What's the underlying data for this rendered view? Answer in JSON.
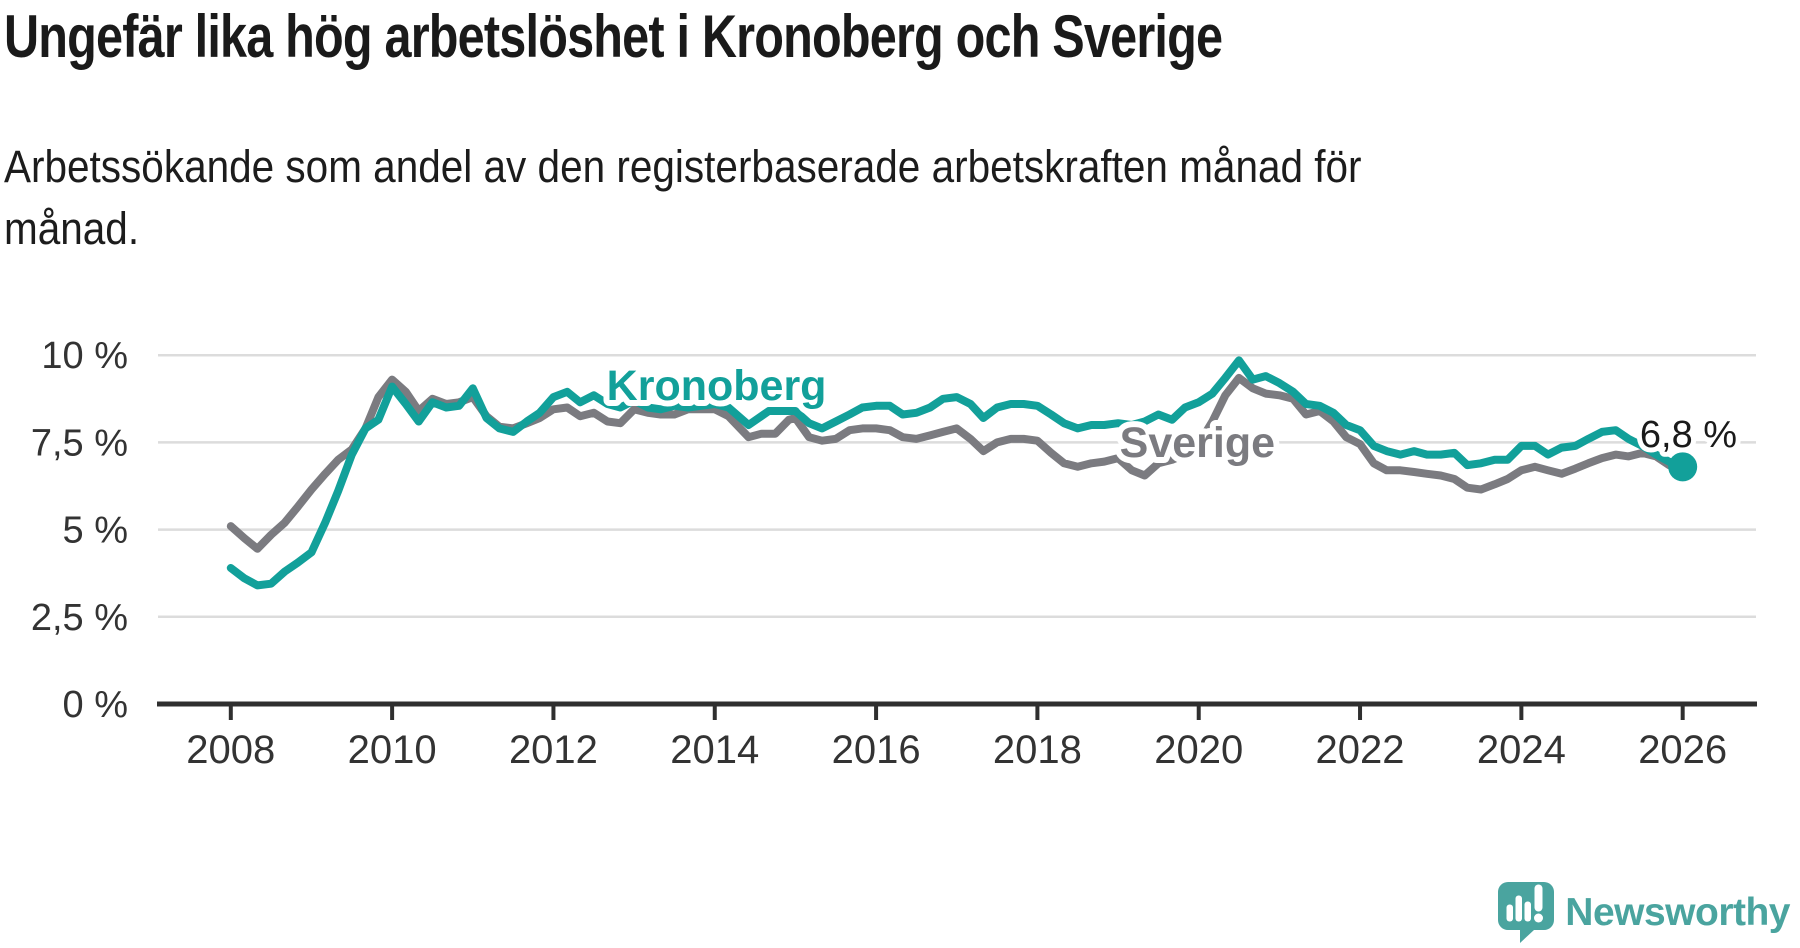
{
  "header": {
    "title": "Ungefär lika hög arbetslöshet i Kronoberg och Sverige",
    "subtitle_line1": "Arbetssökande som andel av den registerbaserade arbetskraften månad för",
    "subtitle_line2": "månad."
  },
  "footer": {
    "logo_text": "Newsworthy",
    "logo_color": "#4aa49f",
    "logo_icon": "speech-bubble-bar-chart-icon"
  },
  "chart_data": {
    "type": "line",
    "title": "Ungefär lika hög arbetslöshet i Kronoberg och Sverige",
    "subtitle": "Arbetssökande som andel av den registerbaserade arbetskraften månad för månad.",
    "unit": "%",
    "grid": true,
    "legend_position": "inline-labels",
    "x_axis": {
      "range": [
        2007.9,
        2026.9
      ],
      "ticks": [
        {
          "year": 2008,
          "label": "2008"
        },
        {
          "year": 2010,
          "label": "2010"
        },
        {
          "year": 2012,
          "label": "2012"
        },
        {
          "year": 2014,
          "label": "2014"
        },
        {
          "year": 2016,
          "label": "2016"
        },
        {
          "year": 2018,
          "label": "2018"
        },
        {
          "year": 2020,
          "label": "2020"
        },
        {
          "year": 2022,
          "label": "2022"
        },
        {
          "year": 2024,
          "label": "2024"
        },
        {
          "year": 2026,
          "label": "2026"
        }
      ]
    },
    "y_axis": {
      "range": [
        0,
        10.6
      ],
      "ticks": [
        {
          "value": 0,
          "label": "0 %"
        },
        {
          "value": 2.5,
          "label": "2,5 %"
        },
        {
          "value": 5,
          "label": "5 %"
        },
        {
          "value": 7.5,
          "label": "7,5 %"
        },
        {
          "value": 10,
          "label": "10 %"
        }
      ]
    },
    "series": [
      {
        "name": "Sverige",
        "color": "#7b7b80",
        "inline_label": {
          "text": "Sverige",
          "year": 2019.02,
          "value": 7.08
        },
        "points": [
          [
            2008.0,
            5.1
          ],
          [
            2008.17,
            4.75
          ],
          [
            2008.33,
            4.45
          ],
          [
            2008.5,
            4.85
          ],
          [
            2008.67,
            5.2
          ],
          [
            2008.83,
            5.65
          ],
          [
            2009.0,
            6.15
          ],
          [
            2009.17,
            6.6
          ],
          [
            2009.33,
            7.0
          ],
          [
            2009.5,
            7.3
          ],
          [
            2009.67,
            7.9
          ],
          [
            2009.83,
            8.8
          ],
          [
            2010.0,
            9.3
          ],
          [
            2010.17,
            8.95
          ],
          [
            2010.33,
            8.4
          ],
          [
            2010.5,
            8.75
          ],
          [
            2010.67,
            8.6
          ],
          [
            2010.83,
            8.65
          ],
          [
            2011.0,
            8.8
          ],
          [
            2011.17,
            8.25
          ],
          [
            2011.33,
            7.95
          ],
          [
            2011.5,
            7.9
          ],
          [
            2011.67,
            8.05
          ],
          [
            2011.83,
            8.2
          ],
          [
            2012.0,
            8.45
          ],
          [
            2012.17,
            8.5
          ],
          [
            2012.33,
            8.25
          ],
          [
            2012.5,
            8.35
          ],
          [
            2012.67,
            8.1
          ],
          [
            2012.83,
            8.05
          ],
          [
            2013.0,
            8.45
          ],
          [
            2013.17,
            8.35
          ],
          [
            2013.33,
            8.3
          ],
          [
            2013.5,
            8.3
          ],
          [
            2013.67,
            8.45
          ],
          [
            2013.83,
            8.45
          ],
          [
            2014.0,
            8.45
          ],
          [
            2014.17,
            8.25
          ],
          [
            2014.42,
            7.65
          ],
          [
            2014.58,
            7.75
          ],
          [
            2014.75,
            7.75
          ],
          [
            2014.92,
            8.15
          ],
          [
            2015.0,
            8.2
          ],
          [
            2015.17,
            7.65
          ],
          [
            2015.33,
            7.55
          ],
          [
            2015.5,
            7.6
          ],
          [
            2015.67,
            7.85
          ],
          [
            2015.83,
            7.9
          ],
          [
            2016.0,
            7.9
          ],
          [
            2016.17,
            7.85
          ],
          [
            2016.33,
            7.65
          ],
          [
            2016.5,
            7.6
          ],
          [
            2016.67,
            7.7
          ],
          [
            2016.83,
            7.8
          ],
          [
            2017.0,
            7.9
          ],
          [
            2017.17,
            7.6
          ],
          [
            2017.33,
            7.25
          ],
          [
            2017.5,
            7.5
          ],
          [
            2017.67,
            7.6
          ],
          [
            2017.83,
            7.6
          ],
          [
            2018.0,
            7.55
          ],
          [
            2018.17,
            7.2
          ],
          [
            2018.33,
            6.9
          ],
          [
            2018.5,
            6.8
          ],
          [
            2018.67,
            6.9
          ],
          [
            2018.83,
            6.95
          ],
          [
            2019.0,
            7.05
          ],
          [
            2019.17,
            6.7
          ],
          [
            2019.33,
            6.55
          ],
          [
            2019.5,
            6.9
          ],
          [
            2019.67,
            7.0
          ],
          [
            2019.83,
            7.15
          ],
          [
            2020.0,
            7.45
          ],
          [
            2020.17,
            8.1
          ],
          [
            2020.33,
            8.85
          ],
          [
            2020.5,
            9.35
          ],
          [
            2020.67,
            9.05
          ],
          [
            2020.83,
            8.9
          ],
          [
            2021.0,
            8.85
          ],
          [
            2021.17,
            8.75
          ],
          [
            2021.33,
            8.3
          ],
          [
            2021.5,
            8.4
          ],
          [
            2021.67,
            8.1
          ],
          [
            2021.83,
            7.65
          ],
          [
            2022.0,
            7.45
          ],
          [
            2022.17,
            6.9
          ],
          [
            2022.33,
            6.7
          ],
          [
            2022.5,
            6.7
          ],
          [
            2022.67,
            6.65
          ],
          [
            2022.83,
            6.6
          ],
          [
            2023.0,
            6.55
          ],
          [
            2023.17,
            6.45
          ],
          [
            2023.33,
            6.2
          ],
          [
            2023.5,
            6.15
          ],
          [
            2023.67,
            6.3
          ],
          [
            2023.83,
            6.45
          ],
          [
            2024.0,
            6.7
          ],
          [
            2024.17,
            6.8
          ],
          [
            2024.33,
            6.7
          ],
          [
            2024.5,
            6.6
          ],
          [
            2024.67,
            6.75
          ],
          [
            2024.83,
            6.9
          ],
          [
            2025.0,
            7.05
          ],
          [
            2025.17,
            7.15
          ],
          [
            2025.33,
            7.1
          ],
          [
            2025.5,
            7.2
          ],
          [
            2025.67,
            7.1
          ],
          [
            2025.83,
            6.85
          ],
          [
            2026.0,
            6.75
          ]
        ]
      },
      {
        "name": "Kronoberg",
        "color": "#12a09a",
        "inline_label": {
          "text": "Kronoberg",
          "year": 2012.66,
          "value": 8.72
        },
        "points": [
          [
            2008.0,
            3.9
          ],
          [
            2008.17,
            3.6
          ],
          [
            2008.33,
            3.4
          ],
          [
            2008.5,
            3.45
          ],
          [
            2008.67,
            3.8
          ],
          [
            2008.83,
            4.05
          ],
          [
            2009.0,
            4.35
          ],
          [
            2009.17,
            5.2
          ],
          [
            2009.33,
            6.1
          ],
          [
            2009.5,
            7.15
          ],
          [
            2009.67,
            7.9
          ],
          [
            2009.83,
            8.15
          ],
          [
            2010.0,
            9.1
          ],
          [
            2010.17,
            8.6
          ],
          [
            2010.33,
            8.1
          ],
          [
            2010.5,
            8.65
          ],
          [
            2010.67,
            8.5
          ],
          [
            2010.83,
            8.55
          ],
          [
            2011.0,
            9.05
          ],
          [
            2011.17,
            8.2
          ],
          [
            2011.33,
            7.9
          ],
          [
            2011.5,
            7.8
          ],
          [
            2011.67,
            8.1
          ],
          [
            2011.83,
            8.35
          ],
          [
            2012.0,
            8.8
          ],
          [
            2012.17,
            8.95
          ],
          [
            2012.33,
            8.65
          ],
          [
            2012.5,
            8.85
          ],
          [
            2012.67,
            8.6
          ],
          [
            2012.83,
            8.5
          ],
          [
            2013.0,
            8.7
          ],
          [
            2013.17,
            8.5
          ],
          [
            2013.33,
            8.45
          ],
          [
            2013.5,
            8.55
          ],
          [
            2013.67,
            8.5
          ],
          [
            2013.83,
            8.55
          ],
          [
            2014.0,
            8.6
          ],
          [
            2014.17,
            8.5
          ],
          [
            2014.42,
            8.0
          ],
          [
            2014.67,
            8.4
          ],
          [
            2014.83,
            8.4
          ],
          [
            2015.0,
            8.4
          ],
          [
            2015.17,
            8.05
          ],
          [
            2015.33,
            7.9
          ],
          [
            2015.5,
            8.1
          ],
          [
            2015.67,
            8.3
          ],
          [
            2015.83,
            8.5
          ],
          [
            2016.0,
            8.55
          ],
          [
            2016.17,
            8.55
          ],
          [
            2016.33,
            8.3
          ],
          [
            2016.5,
            8.35
          ],
          [
            2016.67,
            8.5
          ],
          [
            2016.83,
            8.75
          ],
          [
            2017.0,
            8.8
          ],
          [
            2017.17,
            8.6
          ],
          [
            2017.33,
            8.2
          ],
          [
            2017.5,
            8.5
          ],
          [
            2017.67,
            8.6
          ],
          [
            2017.83,
            8.6
          ],
          [
            2018.0,
            8.55
          ],
          [
            2018.17,
            8.3
          ],
          [
            2018.33,
            8.05
          ],
          [
            2018.5,
            7.9
          ],
          [
            2018.67,
            8.0
          ],
          [
            2018.83,
            8.0
          ],
          [
            2019.0,
            8.05
          ],
          [
            2019.17,
            8.0
          ],
          [
            2019.33,
            8.1
          ],
          [
            2019.5,
            8.3
          ],
          [
            2019.67,
            8.15
          ],
          [
            2019.83,
            8.5
          ],
          [
            2020.0,
            8.65
          ],
          [
            2020.17,
            8.9
          ],
          [
            2020.33,
            9.35
          ],
          [
            2020.5,
            9.85
          ],
          [
            2020.67,
            9.3
          ],
          [
            2020.83,
            9.4
          ],
          [
            2021.0,
            9.2
          ],
          [
            2021.17,
            8.95
          ],
          [
            2021.33,
            8.6
          ],
          [
            2021.5,
            8.55
          ],
          [
            2021.67,
            8.35
          ],
          [
            2021.83,
            8.0
          ],
          [
            2022.0,
            7.85
          ],
          [
            2022.17,
            7.4
          ],
          [
            2022.33,
            7.25
          ],
          [
            2022.5,
            7.15
          ],
          [
            2022.67,
            7.25
          ],
          [
            2022.83,
            7.15
          ],
          [
            2023.0,
            7.15
          ],
          [
            2023.17,
            7.2
          ],
          [
            2023.33,
            6.85
          ],
          [
            2023.5,
            6.9
          ],
          [
            2023.67,
            7.0
          ],
          [
            2023.83,
            7.0
          ],
          [
            2024.0,
            7.4
          ],
          [
            2024.17,
            7.4
          ],
          [
            2024.33,
            7.15
          ],
          [
            2024.5,
            7.35
          ],
          [
            2024.67,
            7.4
          ],
          [
            2024.83,
            7.6
          ],
          [
            2025.0,
            7.8
          ],
          [
            2025.17,
            7.85
          ],
          [
            2025.33,
            7.6
          ],
          [
            2025.5,
            7.4
          ],
          [
            2025.67,
            7.15
          ],
          [
            2025.83,
            6.95
          ],
          [
            2026.0,
            6.8
          ]
        ]
      }
    ],
    "end_annotation": {
      "text": "6,8 %",
      "series": "Kronoberg",
      "year": 2026.0,
      "value": 6.8,
      "label_year": 2025.47,
      "label_value": 7.37,
      "marker": "dot"
    },
    "colors": {
      "gridline": "#dcdcdc",
      "axis": "#2f2f2f",
      "tick_text": "#333333",
      "annotation_text": "#1a1a1a"
    }
  }
}
